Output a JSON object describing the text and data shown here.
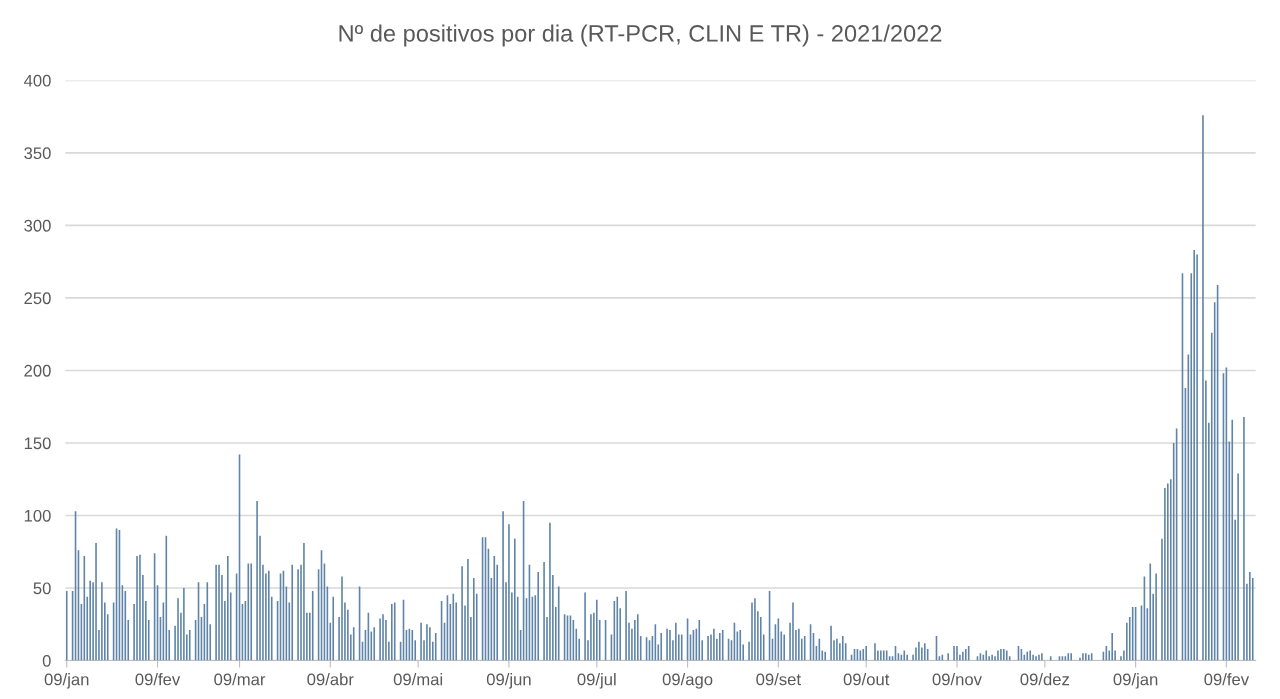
{
  "chart_data": {
    "type": "bar",
    "title": "Nº de positivos por dia (RT-PCR, CLIN E TR) - 2021/2022",
    "x": [
      "2021-01-09",
      "2021-01-10",
      "2021-01-11",
      "2021-01-12",
      "2021-01-13",
      "2021-01-14",
      "2021-01-15",
      "2021-01-16",
      "2021-01-17",
      "2021-01-18",
      "2021-01-19",
      "2021-01-20",
      "2021-01-21",
      "2021-01-22",
      "2021-01-23",
      "2021-01-24",
      "2021-01-25",
      "2021-01-26",
      "2021-01-27",
      "2021-01-28",
      "2021-01-29",
      "2021-01-30",
      "2021-01-31",
      "2021-02-01",
      "2021-02-02",
      "2021-02-03",
      "2021-02-04",
      "2021-02-05",
      "2021-02-06",
      "2021-02-07",
      "2021-02-08",
      "2021-02-09",
      "2021-02-10",
      "2021-02-11",
      "2021-02-12",
      "2021-02-13",
      "2021-02-14",
      "2021-02-15",
      "2021-02-16",
      "2021-02-17",
      "2021-02-18",
      "2021-02-19",
      "2021-02-20",
      "2021-02-21",
      "2021-02-22",
      "2021-02-23",
      "2021-02-24",
      "2021-02-25",
      "2021-02-26",
      "2021-02-27",
      "2021-02-28",
      "2021-03-01",
      "2021-03-02",
      "2021-03-03",
      "2021-03-04",
      "2021-03-05",
      "2021-03-06",
      "2021-03-07",
      "2021-03-08",
      "2021-03-09",
      "2021-03-10",
      "2021-03-11",
      "2021-03-12",
      "2021-03-13",
      "2021-03-14",
      "2021-03-15",
      "2021-03-16",
      "2021-03-17",
      "2021-03-18",
      "2021-03-19",
      "2021-03-20",
      "2021-03-21",
      "2021-03-22",
      "2021-03-23",
      "2021-03-24",
      "2021-03-25",
      "2021-03-26",
      "2021-03-27",
      "2021-03-28",
      "2021-03-29",
      "2021-03-30",
      "2021-03-31",
      "2021-04-01",
      "2021-04-02",
      "2021-04-03",
      "2021-04-04",
      "2021-04-05",
      "2021-04-06",
      "2021-04-07",
      "2021-04-08",
      "2021-04-09",
      "2021-04-10",
      "2021-04-11",
      "2021-04-12",
      "2021-04-13",
      "2021-04-14",
      "2021-04-15",
      "2021-04-16",
      "2021-04-17",
      "2021-04-18",
      "2021-04-19",
      "2021-04-20",
      "2021-04-21",
      "2021-04-22",
      "2021-04-23",
      "2021-04-24",
      "2021-04-25",
      "2021-04-26",
      "2021-04-27",
      "2021-04-28",
      "2021-04-29",
      "2021-04-30",
      "2021-05-01",
      "2021-05-02",
      "2021-05-03",
      "2021-05-04",
      "2021-05-05",
      "2021-05-06",
      "2021-05-07",
      "2021-05-08",
      "2021-05-09",
      "2021-05-10",
      "2021-05-11",
      "2021-05-12",
      "2021-05-13",
      "2021-05-14",
      "2021-05-15",
      "2021-05-16",
      "2021-05-17",
      "2021-05-18",
      "2021-05-19",
      "2021-05-20",
      "2021-05-21",
      "2021-05-22",
      "2021-05-23",
      "2021-05-24",
      "2021-05-25",
      "2021-05-26",
      "2021-05-27",
      "2021-05-28",
      "2021-05-29",
      "2021-05-30",
      "2021-05-31",
      "2021-06-01",
      "2021-06-02",
      "2021-06-03",
      "2021-06-04",
      "2021-06-05",
      "2021-06-06",
      "2021-06-07",
      "2021-06-08",
      "2021-06-09",
      "2021-06-10",
      "2021-06-11",
      "2021-06-12",
      "2021-06-13",
      "2021-06-14",
      "2021-06-15",
      "2021-06-16",
      "2021-06-17",
      "2021-06-18",
      "2021-06-19",
      "2021-06-20",
      "2021-06-21",
      "2021-06-22",
      "2021-06-23",
      "2021-06-24",
      "2021-06-25",
      "2021-06-26",
      "2021-06-27",
      "2021-06-28",
      "2021-06-29",
      "2021-06-30",
      "2021-07-01",
      "2021-07-02",
      "2021-07-03",
      "2021-07-04",
      "2021-07-05",
      "2021-07-06",
      "2021-07-07",
      "2021-07-08",
      "2021-07-09",
      "2021-07-10",
      "2021-07-11",
      "2021-07-12",
      "2021-07-13",
      "2021-07-14",
      "2021-07-15",
      "2021-07-16",
      "2021-07-17",
      "2021-07-18",
      "2021-07-19",
      "2021-07-20",
      "2021-07-21",
      "2021-07-22",
      "2021-07-23",
      "2021-07-24",
      "2021-07-25",
      "2021-07-26",
      "2021-07-27",
      "2021-07-28",
      "2021-07-29",
      "2021-07-30",
      "2021-07-31",
      "2021-08-01",
      "2021-08-02",
      "2021-08-03",
      "2021-08-04",
      "2021-08-05",
      "2021-08-06",
      "2021-08-07",
      "2021-08-08",
      "2021-08-09",
      "2021-08-10",
      "2021-08-11",
      "2021-08-12",
      "2021-08-13",
      "2021-08-14",
      "2021-08-15",
      "2021-08-16",
      "2021-08-17",
      "2021-08-18",
      "2021-08-19",
      "2021-08-20",
      "2021-08-21",
      "2021-08-22",
      "2021-08-23",
      "2021-08-24",
      "2021-08-25",
      "2021-08-26",
      "2021-08-27",
      "2021-08-28",
      "2021-08-29",
      "2021-08-30",
      "2021-08-31",
      "2021-09-01",
      "2021-09-02",
      "2021-09-03",
      "2021-09-04",
      "2021-09-05",
      "2021-09-06",
      "2021-09-07",
      "2021-09-08",
      "2021-09-09",
      "2021-09-10",
      "2021-09-11",
      "2021-09-12",
      "2021-09-13",
      "2021-09-14",
      "2021-09-15",
      "2021-09-16",
      "2021-09-17",
      "2021-09-18",
      "2021-09-19",
      "2021-09-20",
      "2021-09-21",
      "2021-09-22",
      "2021-09-23",
      "2021-09-24",
      "2021-09-25",
      "2021-09-26",
      "2021-09-27",
      "2021-09-28",
      "2021-09-29",
      "2021-09-30",
      "2021-10-01",
      "2021-10-02",
      "2021-10-03",
      "2021-10-04",
      "2021-10-05",
      "2021-10-06",
      "2021-10-07",
      "2021-10-08",
      "2021-10-09",
      "2021-10-10",
      "2021-10-11",
      "2021-10-12",
      "2021-10-13",
      "2021-10-14",
      "2021-10-15",
      "2021-10-16",
      "2021-10-17",
      "2021-10-18",
      "2021-10-19",
      "2021-10-20",
      "2021-10-21",
      "2021-10-22",
      "2021-10-23",
      "2021-10-24",
      "2021-10-25",
      "2021-10-26",
      "2021-10-27",
      "2021-10-28",
      "2021-10-29",
      "2021-10-30",
      "2021-10-31",
      "2021-11-01",
      "2021-11-02",
      "2021-11-03",
      "2021-11-04",
      "2021-11-05",
      "2021-11-06",
      "2021-11-07",
      "2021-11-08",
      "2021-11-09",
      "2021-11-10",
      "2021-11-11",
      "2021-11-12",
      "2021-11-13",
      "2021-11-14",
      "2021-11-15",
      "2021-11-16",
      "2021-11-17",
      "2021-11-18",
      "2021-11-19",
      "2021-11-20",
      "2021-11-21",
      "2021-11-22",
      "2021-11-23",
      "2021-11-24",
      "2021-11-25",
      "2021-11-26",
      "2021-11-27",
      "2021-11-28",
      "2021-11-29",
      "2021-11-30",
      "2021-12-01",
      "2021-12-02",
      "2021-12-03",
      "2021-12-04",
      "2021-12-05",
      "2021-12-06",
      "2021-12-07",
      "2021-12-08",
      "2021-12-09",
      "2021-12-10",
      "2021-12-11",
      "2021-12-12",
      "2021-12-13",
      "2021-12-14",
      "2021-12-15",
      "2021-12-16",
      "2021-12-17",
      "2021-12-18",
      "2021-12-19",
      "2021-12-20",
      "2021-12-21",
      "2021-12-22",
      "2021-12-23",
      "2021-12-24",
      "2021-12-25",
      "2021-12-26",
      "2021-12-27",
      "2021-12-28",
      "2021-12-29",
      "2021-12-30",
      "2021-12-31",
      "2022-01-01",
      "2022-01-02",
      "2022-01-03",
      "2022-01-04",
      "2022-01-05",
      "2022-01-06",
      "2022-01-07",
      "2022-01-08",
      "2022-01-09",
      "2022-01-10",
      "2022-01-11",
      "2022-01-12",
      "2022-01-13",
      "2022-01-14",
      "2022-01-15",
      "2022-01-16",
      "2022-01-17",
      "2022-01-18",
      "2022-01-19",
      "2022-01-20",
      "2022-01-21",
      "2022-01-22",
      "2022-01-23",
      "2022-01-24",
      "2022-01-25",
      "2022-01-26",
      "2022-01-27",
      "2022-01-28",
      "2022-01-29",
      "2022-01-30",
      "2022-01-31",
      "2022-02-01",
      "2022-02-02",
      "2022-02-03",
      "2022-02-04",
      "2022-02-05",
      "2022-02-06",
      "2022-02-07",
      "2022-02-08",
      "2022-02-09",
      "2022-02-10",
      "2022-02-11",
      "2022-02-12",
      "2022-02-13",
      "2022-02-14",
      "2022-02-15",
      "2022-02-16",
      "2022-02-17",
      "2022-02-18"
    ],
    "values": [
      48,
      null,
      48,
      103,
      76,
      39,
      72,
      44,
      55,
      54,
      81,
      21,
      54,
      40,
      32,
      null,
      40,
      91,
      90,
      52,
      48,
      28,
      null,
      39,
      72,
      73,
      59,
      41,
      28,
      null,
      74,
      52,
      30,
      40,
      86,
      21,
      null,
      24,
      43,
      33,
      50,
      18,
      21,
      null,
      28,
      54,
      30,
      39,
      54,
      25,
      null,
      66,
      66,
      59,
      41,
      72,
      47,
      null,
      60,
      142,
      39,
      41,
      67,
      67,
      null,
      110,
      86,
      66,
      60,
      62,
      44,
      null,
      41,
      60,
      62,
      51,
      40,
      66,
      null,
      63,
      66,
      81,
      33,
      33,
      48,
      null,
      63,
      76,
      67,
      51,
      26,
      44,
      null,
      30,
      58,
      40,
      35,
      18,
      23,
      null,
      51,
      13,
      21,
      33,
      20,
      23,
      null,
      29,
      32,
      28,
      13,
      39,
      40,
      null,
      13,
      42,
      21,
      22,
      21,
      14,
      null,
      26,
      14,
      25,
      23,
      13,
      19,
      null,
      41,
      26,
      45,
      39,
      46,
      40,
      null,
      65,
      38,
      70,
      30,
      57,
      46,
      null,
      85,
      85,
      77,
      57,
      72,
      66,
      null,
      103,
      54,
      94,
      47,
      84,
      44,
      21,
      110,
      43,
      66,
      44,
      45,
      61,
      null,
      68,
      30,
      95,
      59,
      37,
      51,
      null,
      32,
      31,
      31,
      28,
      22,
      15,
      null,
      47,
      14,
      32,
      33,
      42,
      28,
      null,
      28,
      null,
      18,
      41,
      44,
      36,
      null,
      48,
      26,
      22,
      28,
      32,
      17,
      null,
      16,
      14,
      17,
      25,
      11,
      19,
      null,
      22,
      21,
      14,
      26,
      18,
      18,
      null,
      29,
      18,
      21,
      22,
      28,
      14,
      null,
      17,
      18,
      22,
      15,
      19,
      21,
      null,
      15,
      14,
      26,
      20,
      21,
      11,
      null,
      13,
      40,
      43,
      34,
      30,
      18,
      null,
      48,
      15,
      25,
      29,
      20,
      18,
      null,
      26,
      40,
      21,
      22,
      15,
      17,
      null,
      25,
      19,
      10,
      15,
      7,
      6,
      null,
      24,
      14,
      15,
      12,
      17,
      12,
      null,
      4,
      8,
      8,
      7,
      8,
      10,
      null,
      null,
      12,
      7,
      7,
      7,
      7,
      3,
      3,
      10,
      5,
      4,
      7,
      4,
      null,
      4,
      9,
      13,
      9,
      12,
      8,
      null,
      null,
      17,
      3,
      4,
      null,
      5,
      null,
      10,
      10,
      4,
      6,
      8,
      10,
      null,
      null,
      3,
      5,
      4,
      7,
      3,
      4,
      3,
      7,
      8,
      8,
      7,
      3,
      null,
      null,
      10,
      8,
      4,
      6,
      7,
      4,
      3,
      4,
      5,
      null,
      null,
      3,
      null,
      null,
      3,
      3,
      3,
      5,
      5,
      null,
      null,
      2,
      5,
      5,
      4,
      5,
      null,
      null,
      null,
      6,
      10,
      7,
      19,
      7,
      null,
      3,
      7,
      26,
      30,
      37,
      37,
      null,
      38,
      58,
      36,
      67,
      46,
      60,
      null,
      84,
      119,
      122,
      125,
      150,
      160,
      null,
      267,
      188,
      211,
      267,
      283,
      280,
      null,
      376,
      193,
      164,
      226,
      247,
      259,
      null,
      198,
      202,
      151,
      166,
      97,
      129,
      null,
      168,
      53,
      61,
      57
    ],
    "color": "#5f84a8",
    "xlim": [
      "2021-01-08T12:00",
      "2022-02-19"
    ],
    "xticks": [
      {
        "value": "2021-01-09",
        "label": "09/jan"
      },
      {
        "value": "2021-02-09",
        "label": "09/fev"
      },
      {
        "value": "2021-03-09",
        "label": "09/mar"
      },
      {
        "value": "2021-04-09",
        "label": "09/abr"
      },
      {
        "value": "2021-05-09",
        "label": "09/mai"
      },
      {
        "value": "2021-06-09",
        "label": "09/jun"
      },
      {
        "value": "2021-07-09",
        "label": "09/jul"
      },
      {
        "value": "2021-08-09",
        "label": "09/ago"
      },
      {
        "value": "2021-09-09",
        "label": "09/set"
      },
      {
        "value": "2021-10-09",
        "label": "09/out"
      },
      {
        "value": "2021-11-09",
        "label": "09/nov"
      },
      {
        "value": "2021-12-09",
        "label": "09/dez"
      },
      {
        "value": "2022-01-09",
        "label": "09/jan"
      },
      {
        "value": "2022-02-09",
        "label": "09/fev"
      }
    ],
    "ylim": [
      0,
      400
    ],
    "yticks": [
      0,
      50,
      100,
      150,
      200,
      250,
      300,
      350,
      400
    ],
    "grid": "y",
    "legend": false
  }
}
